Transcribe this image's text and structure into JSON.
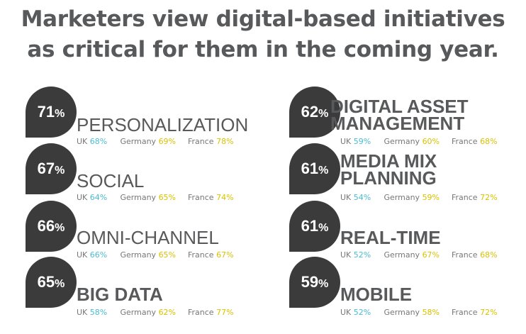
{
  "title": {
    "line1": "Marketers view digital-based initiatives",
    "line2": "as critical for them in the coming year."
  },
  "colors": {
    "drop": "#3b3b3b",
    "text": "#58595b",
    "uk": "#4bbcd2",
    "germany_france": "#d9c200"
  },
  "items": [
    {
      "pct": "71",
      "label1": "PERSONALIZATION",
      "label2": "",
      "uk": "68%",
      "de": "69%",
      "fr": "78%"
    },
    {
      "pct": "67",
      "label1": "SOCIAL",
      "label2": "",
      "uk": "64%",
      "de": "65%",
      "fr": "74%"
    },
    {
      "pct": "66",
      "label1": "OMNI-CHANNEL",
      "label2": "",
      "uk": "66%",
      "de": "65%",
      "fr": "67%"
    },
    {
      "pct": "65",
      "label1": "BIG DATA",
      "label2": "",
      "uk": "58%",
      "de": "62%",
      "fr": "77%"
    },
    {
      "pct": "62",
      "label1": "DIGITAL ASSET",
      "label2": "MANAGEMENT",
      "uk": "59%",
      "de": "60%",
      "fr": "68%"
    },
    {
      "pct": "61",
      "label1": "MEDIA MIX",
      "label2": "PLANNING",
      "uk": "54%",
      "de": "59%",
      "fr": "72%"
    },
    {
      "pct": "61",
      "label1": "REAL-TIME",
      "label2": "",
      "uk": "52%",
      "de": "67%",
      "fr": "68%"
    },
    {
      "pct": "59",
      "label1": "MOBILE",
      "label2": "",
      "uk": "52%",
      "de": "58%",
      "fr": "72%"
    }
  ],
  "country_labels": {
    "uk": "UK",
    "de": "Germany",
    "fr": "France"
  },
  "pct_sign": "%"
}
